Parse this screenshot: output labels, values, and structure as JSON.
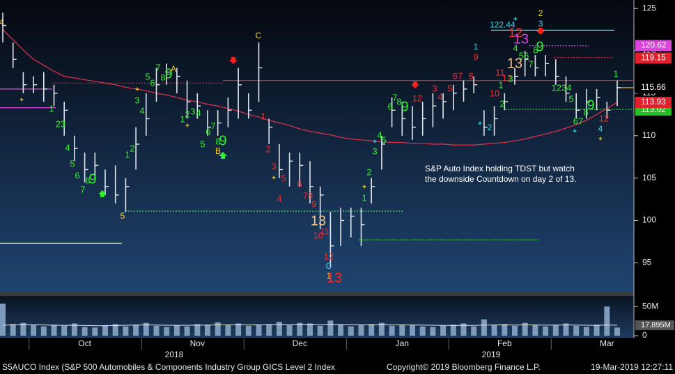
{
  "chart_data": {
    "type": "ohlc",
    "footer": {
      "index": "S5AUCO Index (S&P 500 Automobiles & Components Industry Group GICS Level 2 Index",
      "copyright": "Copyright© 2019 Bloomberg Finance L.P.",
      "timestamp": "19-Mar-2019 12:27:11"
    },
    "categories": [
      null,
      null,
      null,
      null,
      null,
      null,
      null,
      null,
      "Oct",
      null,
      null,
      null,
      null,
      null,
      null,
      null,
      null,
      null,
      null,
      "Nov",
      null,
      null,
      null,
      null,
      null,
      null,
      null,
      null,
      null,
      "Dec",
      null,
      null,
      null,
      null,
      null,
      null,
      null,
      null,
      null,
      "Jan",
      null,
      null,
      null,
      null,
      null,
      null,
      null,
      null,
      null,
      "Feb",
      null,
      null,
      null,
      null,
      null,
      null,
      null,
      null,
      null,
      "Mar",
      null
    ],
    "year_labels": [
      "2018",
      "2019"
    ],
    "high": [
      124.5,
      121,
      117.5,
      117,
      117.5,
      116,
      114,
      110,
      108,
      108,
      106,
      106.5,
      105,
      111,
      115,
      118,
      118.5,
      118,
      116.5,
      115,
      113,
      113,
      114.5,
      118,
      115,
      121,
      112,
      109,
      108,
      108,
      107,
      104,
      101,
      101.5,
      101.5,
      101.5,
      105,
      110,
      114.5,
      114,
      113.5,
      114,
      115,
      115,
      116,
      116.5,
      117,
      113,
      113.5,
      115,
      118,
      120,
      119.5,
      119.5,
      119,
      117,
      115,
      115.5,
      115.5,
      114,
      116.5
    ],
    "low": [
      121,
      118,
      115,
      115,
      114,
      113.5,
      110,
      107,
      104.5,
      105,
      103,
      102,
      101,
      106,
      110,
      114,
      116,
      115,
      112,
      112,
      110,
      110,
      111,
      112,
      112,
      114,
      109,
      105,
      104,
      104,
      102,
      99,
      94.5,
      97,
      98,
      97,
      102,
      106,
      111,
      110,
      109.5,
      110,
      111,
      112,
      113,
      114,
      115,
      110,
      110,
      113,
      116,
      117,
      117,
      117,
      116,
      114,
      112,
      112,
      113,
      112,
      113.5
    ],
    "close": [
      123,
      119,
      116,
      116,
      115.5,
      115,
      113,
      108.5,
      106,
      106.5,
      104,
      103,
      104,
      109,
      112,
      116,
      117.5,
      117,
      114,
      113.5,
      111,
      111.5,
      113,
      116,
      113,
      118,
      111,
      106,
      107,
      106.5,
      104,
      103,
      97,
      100,
      100.5,
      99.5,
      104,
      109,
      113,
      112,
      111,
      112,
      113.5,
      114,
      115,
      115.5,
      116,
      111,
      112,
      114,
      117,
      119,
      118,
      118.5,
      117,
      115,
      113,
      114,
      114.5,
      113,
      115.66
    ],
    "bar_color": "#dfe6ee",
    "ma": {
      "color": "#d8304a",
      "values": [
        122.5,
        121.3,
        120.1,
        119,
        118.3,
        117.6,
        117,
        116.8,
        116.6,
        116.4,
        116.2,
        116,
        115.7,
        115.5,
        115.3,
        115,
        114.8,
        114.5,
        114.2,
        114,
        113.7,
        113.5,
        113.2,
        112.9,
        112.5,
        112.2,
        111.8,
        111.5,
        111.2,
        110.8,
        110.5,
        110.3,
        110.1,
        109.8,
        109.6,
        109.5,
        109.4,
        109.3,
        109.2,
        109.2,
        109.1,
        109.1,
        109,
        109,
        108.9,
        108.9,
        108.9,
        109,
        109.1,
        109.2,
        109.4,
        109.6,
        109.9,
        110.2,
        110.5,
        110.9,
        111.3,
        111.8,
        112.5,
        113.2,
        113.93
      ]
    },
    "ylim": [
      91.5,
      126
    ],
    "yticks": [
      95,
      100,
      105,
      110,
      115,
      120,
      125
    ],
    "price_labels": [
      {
        "value": 120.62,
        "color": "#d946d9"
      },
      {
        "value": 119.15,
        "color": "#e0202c"
      },
      {
        "value": 115.66,
        "color": "#000000"
      },
      {
        "value": 113.02,
        "color": "#1fc21f"
      },
      {
        "value": 113.93,
        "color": "#e0202c"
      }
    ],
    "levels": [
      {
        "value": 115.5,
        "color": "#d946d9",
        "dash": false
      },
      {
        "value": 113.3,
        "color": "#d946d9",
        "dash": false
      },
      {
        "value": 97.3,
        "color": "#e8d21b",
        "dash": false
      },
      {
        "value": 101.1,
        "color": "#33ee33",
        "dash": true
      },
      {
        "value": 97.7,
        "color": "#33ee33",
        "dash": true
      },
      {
        "value": 113.1,
        "color": "#33ee33",
        "dash": true
      },
      {
        "value": 116.2,
        "color": "#e0202c",
        "dash": true
      },
      {
        "value": 116.5,
        "color": "#e0202c",
        "dash": false
      },
      {
        "value": 119.2,
        "color": "#e0202c",
        "dash": true
      },
      {
        "value": 120.6,
        "color": "#d946d9",
        "dash": true
      },
      {
        "value": 122.44,
        "color": "#38d6e6",
        "dash": false,
        "labeled": true
      },
      {
        "value": 115.66,
        "color": "#f0a030",
        "dash": false
      }
    ],
    "annotation": [
      "S&P Auto Index holding TDST but watch",
      "the downside Countdown on day 2 of 13."
    ],
    "counts": [
      {
        "text": "4",
        "color": "#f2d21b"
      },
      {
        "text": "1",
        "color": "#33ee33"
      },
      {
        "text": "23",
        "color": "#33ee33"
      },
      {
        "text": "4",
        "color": "#33ee33"
      },
      {
        "text": "5",
        "color": "#33ee33"
      },
      {
        "text": "6",
        "color": "#33ee33"
      },
      {
        "text": "7",
        "color": "#33ee33"
      },
      {
        "text": "8",
        "color": "#33ee33"
      },
      {
        "text": "9",
        "color": "#33ee33"
      },
      {
        "text": "5",
        "color": "#f2d21b"
      },
      {
        "text": "1",
        "color": "#33ee33"
      },
      {
        "text": "2",
        "color": "#33ee33"
      },
      {
        "text": "3",
        "color": "#33ee33"
      },
      {
        "text": "4",
        "color": "#33ee33"
      },
      {
        "text": "5",
        "color": "#33ee33"
      },
      {
        "text": "6",
        "color": "#33ee33"
      },
      {
        "text": "7",
        "color": "#33ee33"
      },
      {
        "text": "8",
        "color": "#33ee33"
      },
      {
        "text": "9",
        "color": "#33ee33"
      },
      {
        "text": "A",
        "color": "#f2d21b"
      },
      {
        "text": "1",
        "color": "#33ee33"
      },
      {
        "text": "2",
        "color": "#33ee33"
      },
      {
        "text": "3",
        "color": "#33ee33"
      },
      {
        "text": "4",
        "color": "#33ee33"
      },
      {
        "text": "5",
        "color": "#33ee33"
      },
      {
        "text": "6",
        "color": "#33ee33"
      },
      {
        "text": "7",
        "color": "#33ee33"
      },
      {
        "text": "8",
        "color": "#33ee33"
      },
      {
        "text": "9",
        "color": "#33ee33"
      },
      {
        "text": "B",
        "color": "#f2d21b"
      },
      {
        "text": "C",
        "color": "#f2d21b"
      },
      {
        "text": "1",
        "color": "#ee2b2b"
      },
      {
        "text": "2",
        "color": "#ee2b2b"
      },
      {
        "text": "3",
        "color": "#ee2b2b"
      },
      {
        "text": "5",
        "color": "#ee2b2b"
      },
      {
        "text": "4",
        "color": "#ee2b2b"
      },
      {
        "text": "6",
        "color": "#ee2b2b"
      },
      {
        "text": "78",
        "color": "#ee2b2b"
      },
      {
        "text": "9",
        "color": "#ee2b2b"
      },
      {
        "text": "13",
        "color": "#f4c28a"
      },
      {
        "text": "10",
        "color": "#ee2b2b"
      },
      {
        "text": "11",
        "color": "#ee2b2b"
      },
      {
        "text": "12",
        "color": "#ee2b2b"
      },
      {
        "text": "C",
        "color": "#38d6e6"
      },
      {
        "text": "1",
        "color": "#f2d21b"
      },
      {
        "text": "13",
        "color": "#ee2b2b"
      },
      {
        "text": "1",
        "color": "#33ee33"
      },
      {
        "text": "2",
        "color": "#33ee33"
      },
      {
        "text": "3",
        "color": "#33ee33"
      },
      {
        "text": "4",
        "color": "#33ee33"
      },
      {
        "text": "5",
        "color": "#33ee33"
      },
      {
        "text": "6",
        "color": "#33ee33"
      },
      {
        "text": "7",
        "color": "#33ee33"
      },
      {
        "text": "8",
        "color": "#33ee33"
      },
      {
        "text": "9",
        "color": "#33ee33"
      },
      {
        "text": "12",
        "color": "#ee2b2b"
      },
      {
        "text": "3",
        "color": "#ee2b2b"
      },
      {
        "text": "4",
        "color": "#ee2b2b"
      },
      {
        "text": "5",
        "color": "#ee2b2b"
      },
      {
        "text": "67",
        "color": "#ee2b2b"
      },
      {
        "text": "8",
        "color": "#ee2b2b"
      },
      {
        "text": "1",
        "color": "#38d6e6"
      },
      {
        "text": "9",
        "color": "#ee2b2b"
      },
      {
        "text": "2",
        "color": "#38d6e6"
      },
      {
        "text": "10",
        "color": "#ee2b2b"
      },
      {
        "text": "1",
        "color": "#33ee33"
      },
      {
        "text": "2",
        "color": "#33ee33"
      },
      {
        "text": "11",
        "color": "#ee2b2b"
      },
      {
        "text": "12",
        "color": "#ee2b2b"
      },
      {
        "text": "3",
        "color": "#33ee33"
      },
      {
        "text": "13",
        "color": "#f4c28a"
      },
      {
        "text": "4",
        "color": "#33ee33"
      },
      {
        "text": "56",
        "color": "#33ee33"
      },
      {
        "text": "7",
        "color": "#33ee33"
      },
      {
        "text": "8",
        "color": "#33ee33"
      },
      {
        "text": "9",
        "color": "#33ee33"
      },
      {
        "text": "12",
        "color": "#ee2b2b"
      },
      {
        "text": "13",
        "color": "#d946d9"
      },
      {
        "text": "2",
        "color": "#f2d21b"
      },
      {
        "text": "3",
        "color": "#38d6e6"
      },
      {
        "text": "1234",
        "color": "#33ee33"
      },
      {
        "text": "5",
        "color": "#33ee33"
      },
      {
        "text": "67",
        "color": "#33ee33"
      },
      {
        "text": "8",
        "color": "#33ee33"
      },
      {
        "text": "9",
        "color": "#33ee33"
      },
      {
        "text": "12",
        "color": "#ee2b2b"
      },
      {
        "text": "4",
        "color": "#38d6e6"
      },
      {
        "text": "1",
        "color": "#33ee33"
      }
    ],
    "volume": {
      "color": "#7f9bbb",
      "ma_color": "#e8e8e8",
      "values": [
        55,
        20,
        22,
        18,
        16,
        19,
        17,
        21,
        15,
        14,
        18,
        20,
        16,
        19,
        22,
        17,
        15,
        18,
        16,
        20,
        19,
        23,
        18,
        21,
        17,
        19,
        20,
        24,
        18,
        22,
        21,
        17,
        26,
        19,
        16,
        18,
        20,
        22,
        17,
        19,
        18,
        16,
        15,
        17,
        19,
        21,
        16,
        28,
        18,
        20,
        17,
        22,
        19,
        16,
        18,
        21,
        17,
        15,
        19,
        50,
        14
      ],
      "ma": [
        18,
        18.5,
        19,
        18.8,
        18.5,
        18,
        17.8,
        18,
        17.5,
        17.2,
        17,
        17.5,
        18,
        18.2,
        18.5,
        18.2,
        18,
        17.8,
        17.9,
        18,
        18.3,
        18.6,
        18.5,
        18.8,
        18.6,
        18.7,
        19,
        19.2,
        19,
        19.3,
        19.5,
        19,
        19.4,
        19.2,
        19,
        18.8,
        18.6,
        18.9,
        18.7,
        18.5,
        18.4,
        18.2,
        18,
        17.6,
        17.5,
        17.7,
        17.6,
        18.2,
        18.4,
        18.5,
        18.2,
        18.6,
        18.4,
        18.2,
        18.3,
        18.4,
        18.2,
        17.9,
        17.8,
        18.4,
        17.895
      ],
      "ylim": [
        -3.5,
        68
      ],
      "yticks": [
        {
          "value": 50,
          "label": "50M"
        },
        0
      ],
      "ma_label": {
        "value": 17.895,
        "label": "17.895M"
      }
    }
  }
}
